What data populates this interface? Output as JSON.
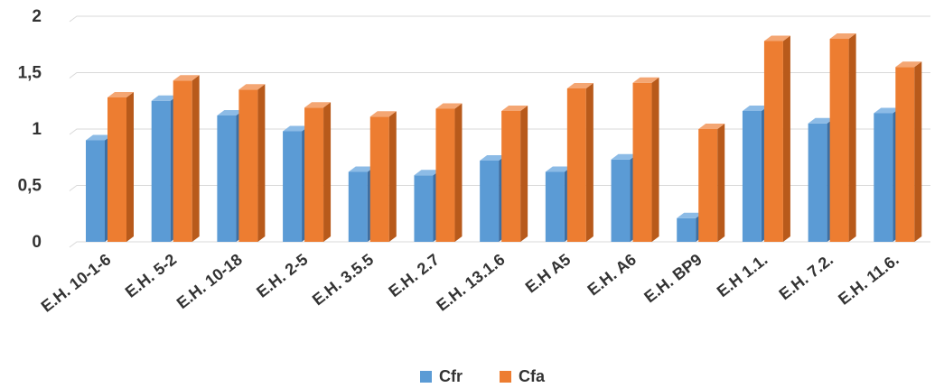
{
  "chart_data": {
    "type": "bar",
    "categories": [
      "E.H. 10-1-6",
      "E.H. 5-2",
      "E.H. 10-18",
      "E.H. 2-5",
      "E.H. 3.5.5",
      "E.H. 2.7",
      "E.H. 13.1.6",
      "E.H A5",
      "E.H. A6",
      "E.H. BP9",
      "E.H 1.1.",
      "E.H. 7.2.",
      "E.H. 11.6."
    ],
    "series": [
      {
        "name": "Cfr",
        "color": "#5b9bd5",
        "side_color": "#3d6fa3",
        "top_color": "#8cbbe6",
        "values": [
          0.9,
          1.25,
          1.12,
          0.98,
          0.62,
          0.59,
          0.72,
          0.62,
          0.73,
          0.21,
          1.16,
          1.05,
          1.14
        ]
      },
      {
        "name": "Cfa",
        "color": "#ed7d31",
        "side_color": "#b85a1b",
        "top_color": "#f4a673",
        "values": [
          1.28,
          1.43,
          1.35,
          1.19,
          1.11,
          1.18,
          1.16,
          1.36,
          1.41,
          1.0,
          1.78,
          1.8,
          1.55
        ]
      }
    ],
    "yticks": [
      "0",
      "0,5",
      "1",
      "1,5",
      "2"
    ],
    "ylim": [
      0,
      2
    ],
    "grid": true,
    "legend": "bottom-center"
  }
}
